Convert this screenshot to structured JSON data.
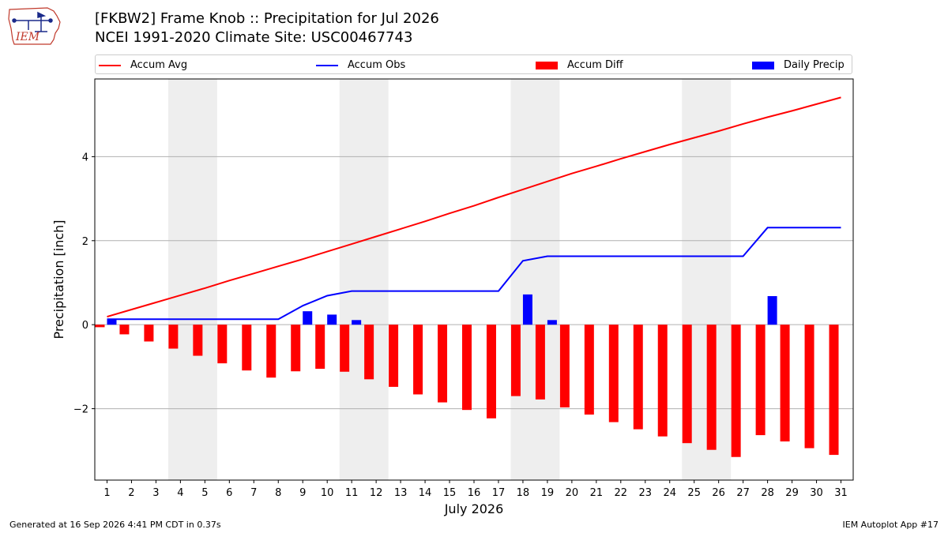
{
  "title_line1": "[FKBW2] Frame Knob :: Precipitation for Jul 2026",
  "title_line2": "NCEI 1991-2020 Climate Site: USC00467743",
  "logo": {
    "text": "IEM",
    "icon": "iem-iowa-logo-icon"
  },
  "legend": [
    {
      "label": "Accum Avg",
      "color": "#ff0000",
      "kind": "line"
    },
    {
      "label": "Accum Obs",
      "color": "#0000ff",
      "kind": "line"
    },
    {
      "label": "Accum Diff",
      "color": "#ff0000",
      "kind": "patch"
    },
    {
      "label": "Daily Precip",
      "color": "#0000ff",
      "kind": "patch"
    }
  ],
  "footer_left": "Generated at 16 Sep 2026 4:41 PM CDT in 0.37s",
  "footer_right": "IEM Autoplot App #17",
  "chart_data": {
    "type": "bar",
    "xlabel": "July 2026",
    "ylabel": "Precipitation [inch]",
    "ylim": [
      -3.7,
      5.85
    ],
    "xlim": [
      0.5,
      31.5
    ],
    "yticks": [
      -2,
      0,
      2,
      4
    ],
    "ytick_labels": [
      "−2",
      "0",
      "2",
      "4"
    ],
    "x": [
      1,
      2,
      3,
      4,
      5,
      6,
      7,
      8,
      9,
      10,
      11,
      12,
      13,
      14,
      15,
      16,
      17,
      18,
      19,
      20,
      21,
      22,
      23,
      24,
      25,
      26,
      27,
      28,
      29,
      30,
      31
    ],
    "weekend_bands": [
      [
        3.5,
        5.5
      ],
      [
        10.5,
        12.5
      ],
      [
        17.5,
        19.5
      ],
      [
        24.5,
        26.5
      ]
    ],
    "grid": "y",
    "series": [
      {
        "name": "Accum Avg",
        "type": "line",
        "color": "#ff0000",
        "values": [
          0.19,
          0.36,
          0.53,
          0.7,
          0.87,
          1.05,
          1.22,
          1.39,
          1.56,
          1.74,
          1.92,
          2.1,
          2.28,
          2.46,
          2.65,
          2.83,
          3.03,
          3.22,
          3.41,
          3.6,
          3.77,
          3.95,
          4.12,
          4.29,
          4.45,
          4.61,
          4.78,
          4.94,
          5.09,
          5.25,
          5.41
        ]
      },
      {
        "name": "Accum Obs",
        "type": "line",
        "color": "#0000ff",
        "values": [
          0.13,
          0.13,
          0.13,
          0.13,
          0.13,
          0.13,
          0.13,
          0.13,
          0.45,
          0.69,
          0.8,
          0.8,
          0.8,
          0.8,
          0.8,
          0.8,
          0.8,
          1.52,
          1.63,
          1.63,
          1.63,
          1.63,
          1.63,
          1.63,
          1.63,
          1.63,
          1.63,
          2.31,
          2.31,
          2.31,
          2.31
        ]
      },
      {
        "name": "Accum Diff",
        "type": "bar",
        "color": "#ff0000",
        "values": [
          -0.06,
          -0.23,
          -0.4,
          -0.57,
          -0.74,
          -0.92,
          -1.09,
          -1.26,
          -1.11,
          -1.05,
          -1.12,
          -1.3,
          -1.48,
          -1.66,
          -1.85,
          -2.03,
          -2.23,
          -1.7,
          -1.78,
          -1.97,
          -2.14,
          -2.32,
          -2.49,
          -2.66,
          -2.82,
          -2.98,
          -3.15,
          -2.63,
          -2.78,
          -2.94,
          -3.1
        ]
      },
      {
        "name": "Daily Precip",
        "type": "bar",
        "color": "#0000ff",
        "values": [
          0.13,
          0,
          0,
          0,
          0,
          0,
          0,
          0,
          0.32,
          0.24,
          0.11,
          0,
          0,
          0,
          0,
          0,
          0,
          0.72,
          0.11,
          0,
          0,
          0,
          0,
          0,
          0,
          0,
          0,
          0.68,
          0,
          0,
          0
        ]
      }
    ]
  }
}
